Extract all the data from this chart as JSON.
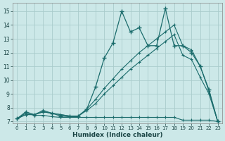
{
  "xlabel": "Humidex (Indice chaleur)",
  "bg_color": "#cce8e8",
  "grid_color": "#aacccc",
  "line_color": "#1a6b6b",
  "xlim": [
    -0.5,
    23.5
  ],
  "ylim": [
    6.85,
    15.6
  ],
  "yticks": [
    7,
    8,
    9,
    10,
    11,
    12,
    13,
    14,
    15
  ],
  "xticks": [
    0,
    1,
    2,
    3,
    4,
    5,
    6,
    7,
    8,
    9,
    10,
    11,
    12,
    13,
    14,
    15,
    16,
    17,
    18,
    19,
    20,
    21,
    22,
    23
  ],
  "s1_x": [
    0,
    1,
    2,
    3,
    4,
    5,
    6,
    7,
    8,
    9,
    10,
    11,
    12,
    13,
    14,
    15,
    16,
    17,
    18,
    19,
    20,
    21,
    22,
    23
  ],
  "s1_y": [
    7.2,
    7.7,
    7.5,
    7.8,
    7.6,
    7.4,
    7.35,
    7.35,
    7.9,
    9.5,
    11.6,
    12.7,
    15.0,
    13.5,
    13.8,
    12.5,
    12.5,
    15.2,
    12.5,
    12.5,
    12.0,
    11.0,
    9.3,
    7.0
  ],
  "s2_x": [
    0,
    1,
    2,
    3,
    4,
    5,
    6,
    7,
    8,
    9,
    10,
    11,
    12,
    13,
    14,
    15,
    16,
    17,
    18,
    19,
    20,
    21,
    22,
    23
  ],
  "s2_y": [
    7.2,
    7.5,
    7.5,
    7.7,
    7.6,
    7.5,
    7.4,
    7.4,
    7.9,
    8.6,
    9.4,
    10.1,
    10.8,
    11.4,
    12.0,
    12.5,
    13.0,
    13.5,
    14.0,
    12.5,
    12.2,
    11.0,
    9.2,
    7.0
  ],
  "s3_x": [
    0,
    1,
    2,
    3,
    4,
    5,
    6,
    7,
    8,
    9,
    10,
    11,
    12,
    13,
    14,
    15,
    16,
    17,
    18,
    19,
    20,
    21,
    22,
    23
  ],
  "s3_y": [
    7.2,
    7.5,
    7.5,
    7.7,
    7.6,
    7.5,
    7.4,
    7.4,
    7.8,
    8.3,
    9.0,
    9.6,
    10.2,
    10.8,
    11.3,
    11.8,
    12.3,
    12.8,
    13.3,
    11.8,
    11.5,
    10.2,
    9.0,
    7.0
  ],
  "s4_x": [
    0,
    1,
    2,
    3,
    4,
    5,
    6,
    7,
    8,
    9,
    10,
    11,
    12,
    13,
    14,
    15,
    16,
    17,
    18,
    19,
    20,
    21,
    22,
    23
  ],
  "s4_y": [
    7.2,
    7.6,
    7.45,
    7.45,
    7.35,
    7.3,
    7.3,
    7.3,
    7.3,
    7.3,
    7.3,
    7.3,
    7.3,
    7.3,
    7.3,
    7.3,
    7.3,
    7.3,
    7.3,
    7.1,
    7.1,
    7.1,
    7.1,
    7.0
  ]
}
